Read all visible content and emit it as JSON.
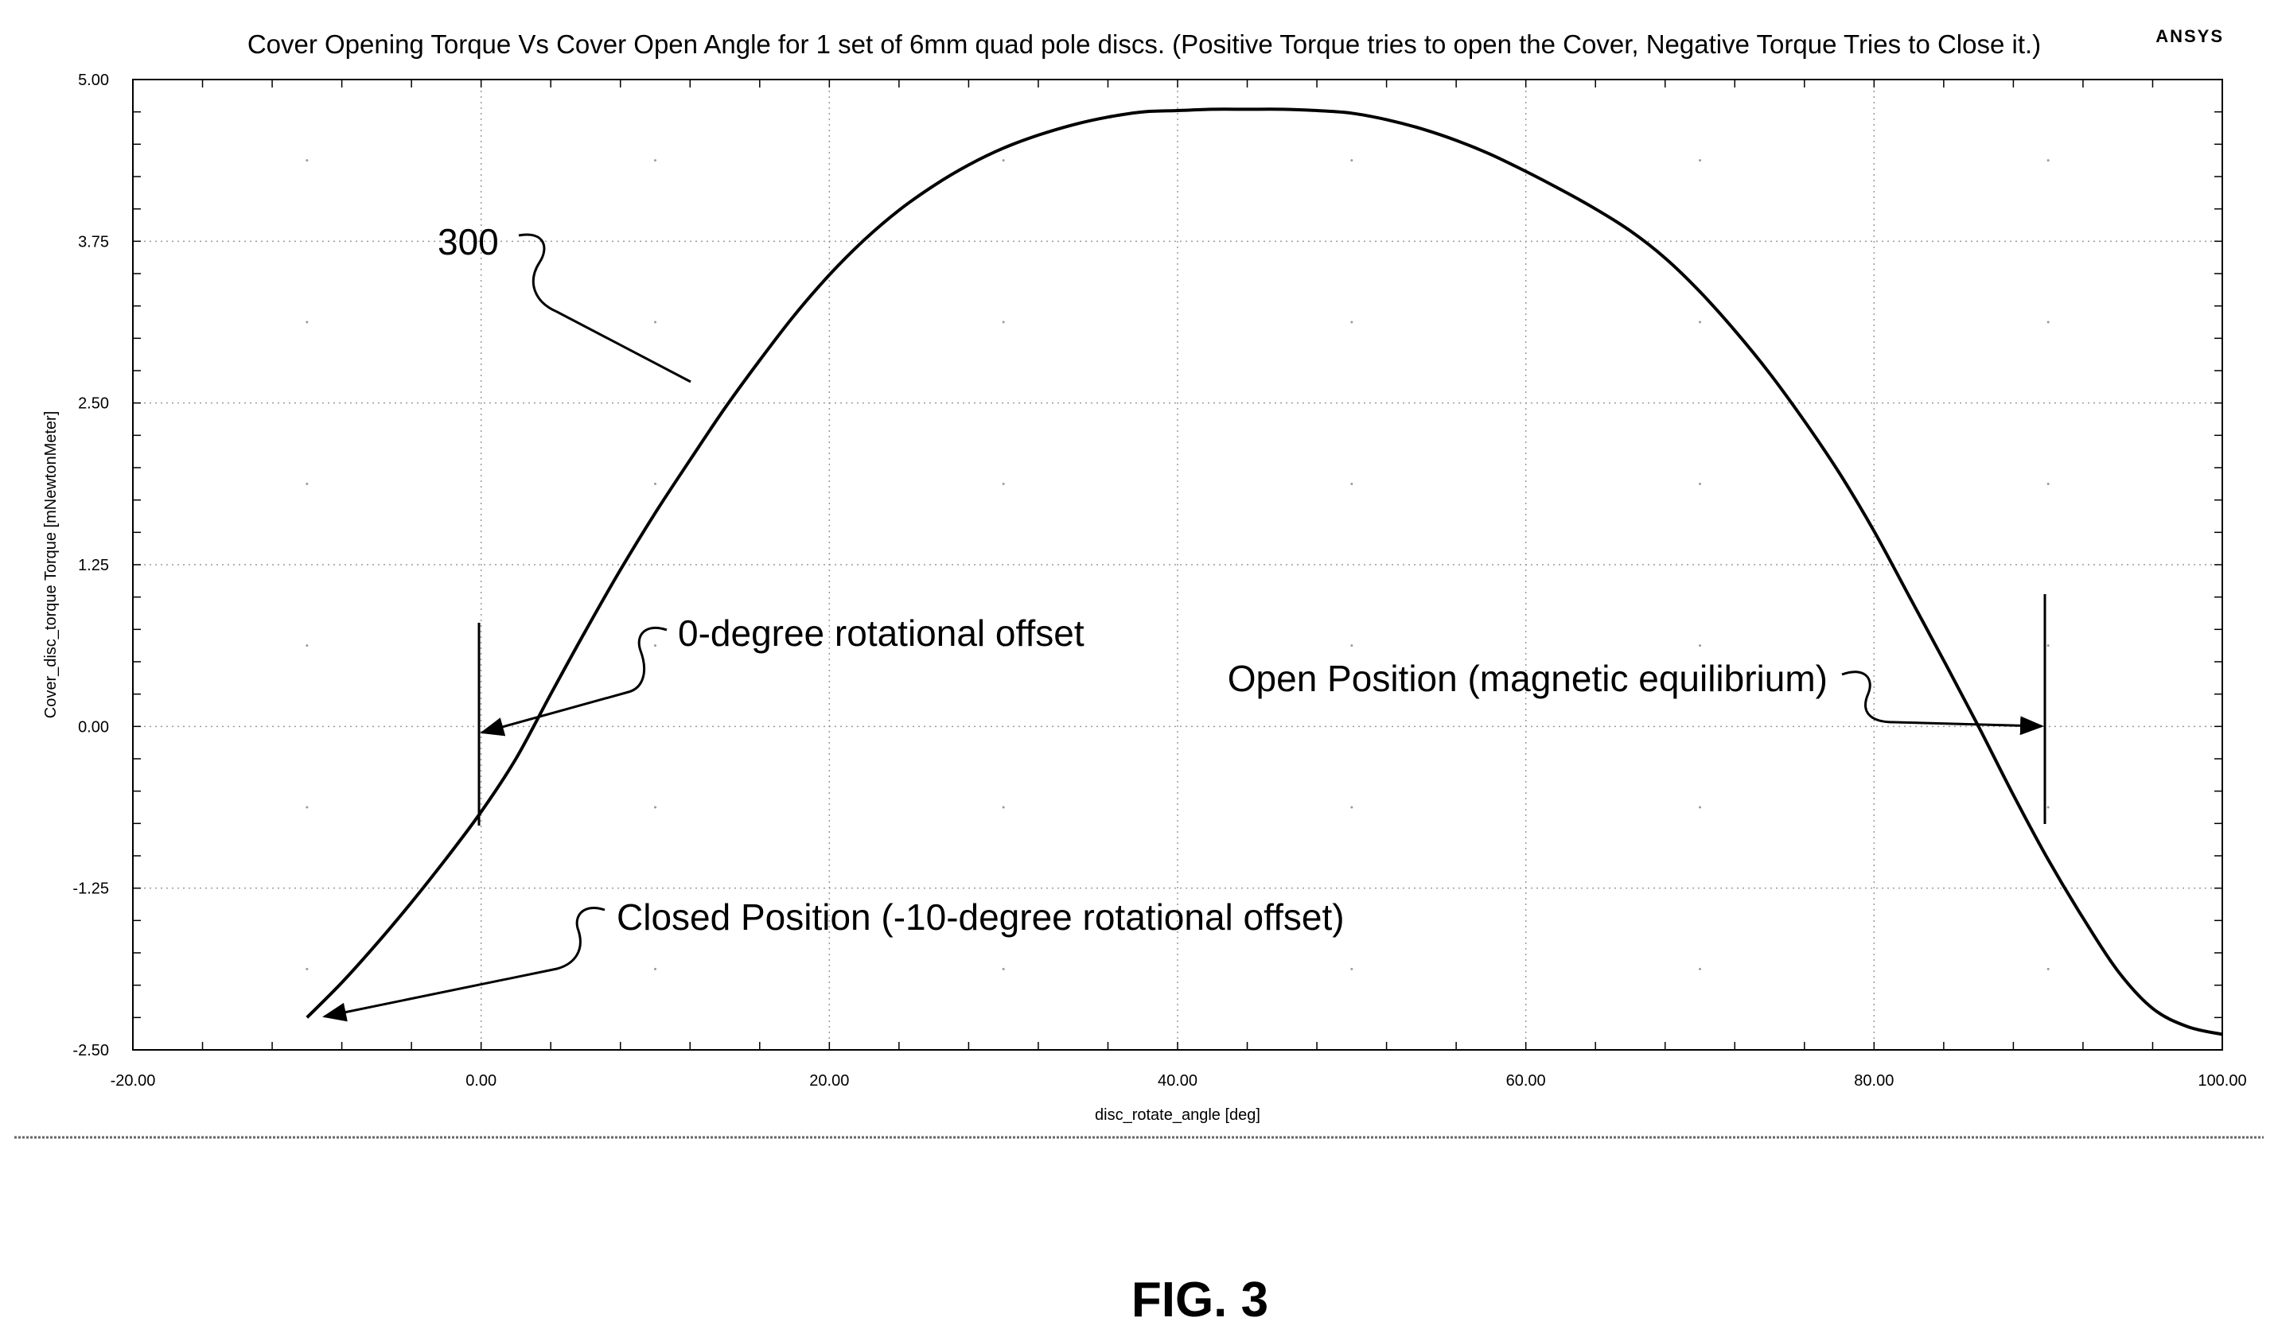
{
  "chart_data": {
    "type": "line",
    "title": "Cover Opening Torque Vs Cover Open Angle for 1 set of 6mm quad pole discs. (Positive Torque tries to open the Cover, Negative Torque Tries to Close it.)",
    "vendor_mark": "ANSYS",
    "xlabel": "disc_rotate_angle [deg]",
    "ylabel": "Cover_disc_torque Torque [mNewtonMeter]",
    "xlim": [
      -20,
      100
    ],
    "ylim": [
      -2.5,
      5.0
    ],
    "x_ticks": [
      "-20.00",
      "0.00",
      "20.00",
      "40.00",
      "60.00",
      "80.00",
      "100.00"
    ],
    "y_ticks": [
      "5.00",
      "3.75",
      "2.50",
      "1.25",
      "0.00",
      "-1.25",
      "-2.50"
    ],
    "grid": true,
    "series": [
      {
        "x": [
          -10,
          -8,
          -6,
          -4,
          -2,
          0,
          2,
          4,
          6,
          8,
          10,
          12,
          14,
          16,
          18,
          20,
          22,
          24,
          26,
          28,
          30,
          32,
          34,
          36,
          38,
          40,
          42,
          44,
          46,
          48,
          50,
          52,
          54,
          56,
          58,
          60,
          62,
          64,
          66,
          68,
          70,
          72,
          74,
          76,
          78,
          80,
          82,
          84,
          86,
          88,
          90,
          92,
          94,
          96,
          98,
          100
        ],
        "y": [
          -2.25,
          -1.98,
          -1.68,
          -1.36,
          -1.02,
          -0.66,
          -0.25,
          0.25,
          0.74,
          1.21,
          1.65,
          2.06,
          2.46,
          2.83,
          3.18,
          3.49,
          3.76,
          3.99,
          4.18,
          4.34,
          4.47,
          4.57,
          4.65,
          4.71,
          4.75,
          4.76,
          4.77,
          4.77,
          4.77,
          4.76,
          4.74,
          4.69,
          4.62,
          4.53,
          4.42,
          4.29,
          4.15,
          4.0,
          3.83,
          3.62,
          3.36,
          3.06,
          2.73,
          2.36,
          1.96,
          1.51,
          1.01,
          0.51,
          0.0,
          -0.53,
          -1.03,
          -1.48,
          -1.89,
          -2.18,
          -2.32,
          -2.38
        ]
      }
    ],
    "annotations": [
      {
        "label": "300",
        "target": {
          "x": 12,
          "y": 2.65
        }
      },
      {
        "label": "0-degree rotational offset",
        "target": {
          "x": 0,
          "y": 0
        }
      },
      {
        "label": "Open Position (magnetic equilibrium)",
        "target": {
          "x": 90,
          "y": 0
        }
      },
      {
        "label": "Closed Position (-10-degree rotational offset)",
        "target": {
          "x": -9,
          "y": -2.25
        }
      }
    ]
  },
  "caption": "FIG. 3"
}
